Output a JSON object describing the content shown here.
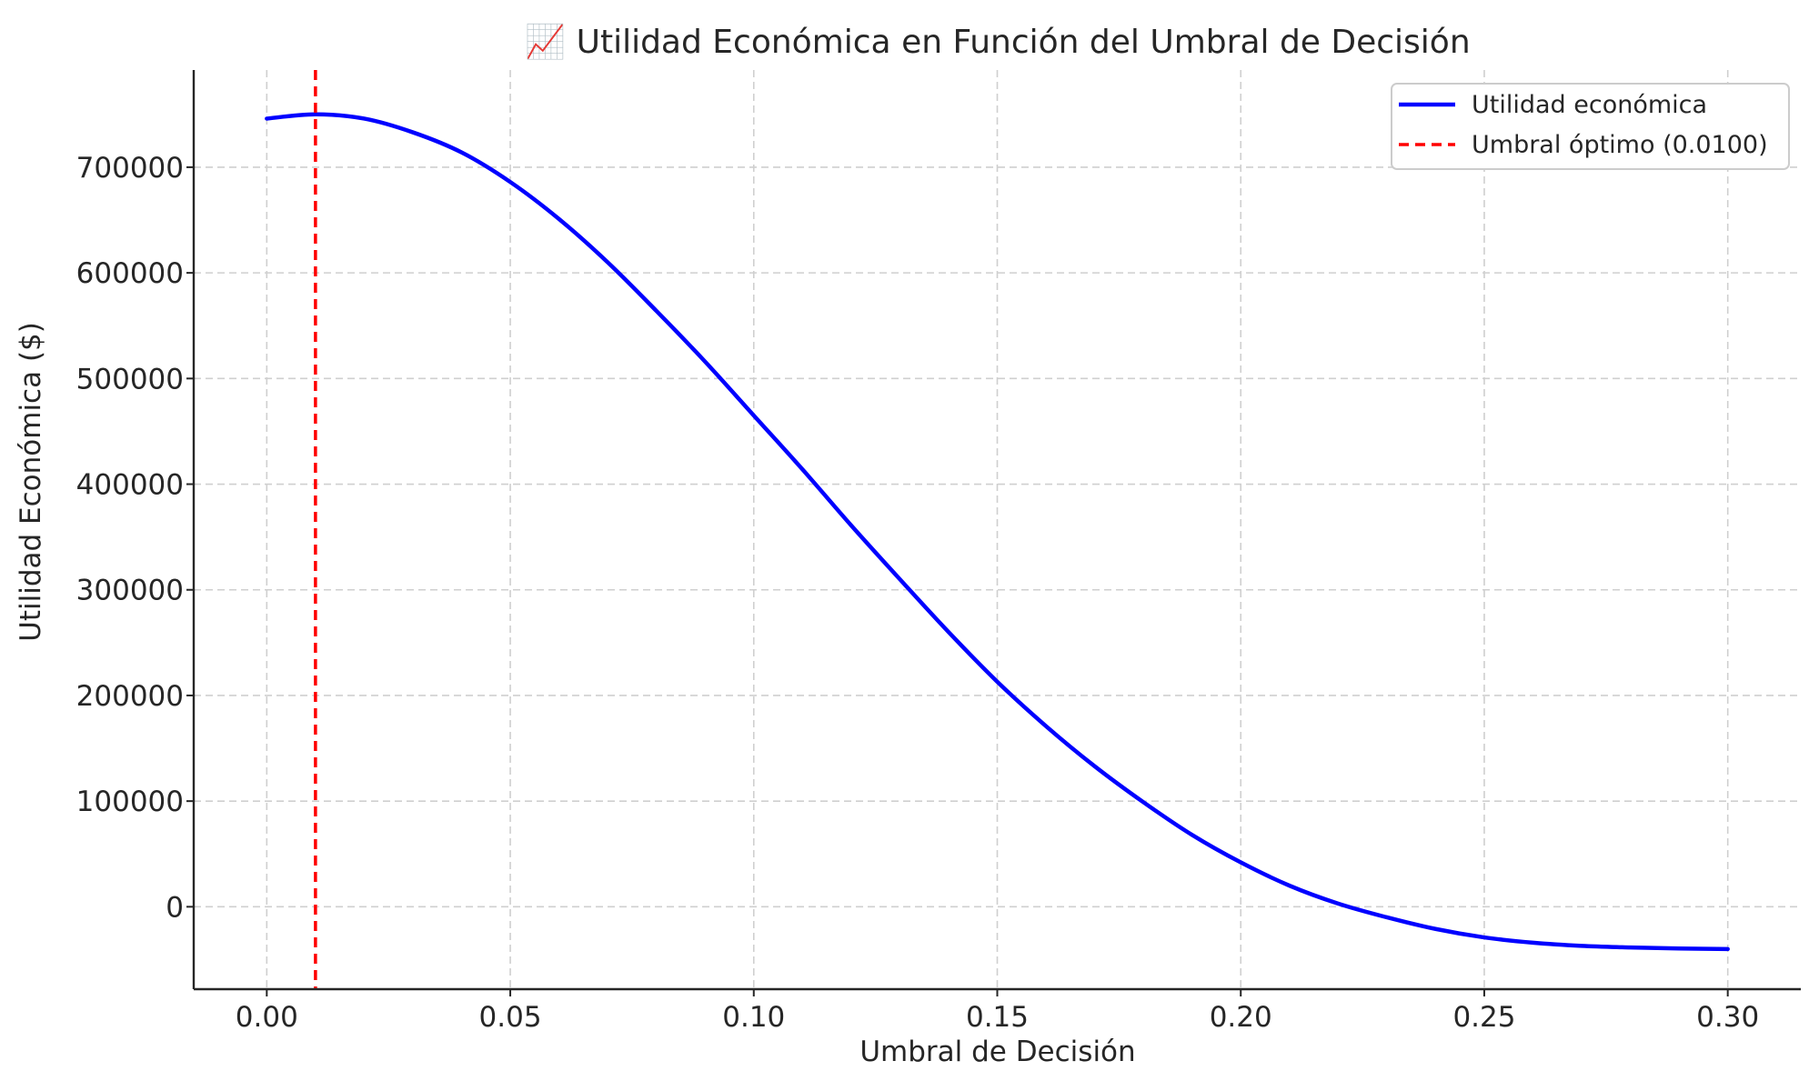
{
  "chart_data": {
    "type": "line",
    "title": "📈 Utilidad Económica en Función del Umbral de Decisión",
    "xlabel": "Umbral de Decisión",
    "ylabel": "Utilidad Económica ($)",
    "xlim": [
      -0.015,
      0.315
    ],
    "ylim": [
      -78000,
      792000
    ],
    "x_ticks": [
      0.0,
      0.05,
      0.1,
      0.15,
      0.2,
      0.25,
      0.3
    ],
    "x_tick_labels": [
      "0.00",
      "0.05",
      "0.10",
      "0.15",
      "0.20",
      "0.25",
      "0.30"
    ],
    "y_ticks": [
      0,
      100000,
      200000,
      300000,
      400000,
      500000,
      600000,
      700000
    ],
    "y_tick_labels": [
      "0",
      "100000",
      "200000",
      "300000",
      "400000",
      "500000",
      "600000",
      "700000"
    ],
    "grid": true,
    "legend_position": "top-right",
    "series": [
      {
        "name": "Utilidad económica",
        "color": "#0000ff",
        "style": "solid",
        "x": [
          0.0,
          0.01,
          0.02,
          0.03,
          0.04,
          0.05,
          0.06,
          0.07,
          0.08,
          0.09,
          0.1,
          0.11,
          0.12,
          0.13,
          0.14,
          0.15,
          0.16,
          0.17,
          0.18,
          0.19,
          0.2,
          0.21,
          0.22,
          0.23,
          0.24,
          0.25,
          0.26,
          0.27,
          0.28,
          0.29,
          0.3
        ],
        "y": [
          746000,
          750000,
          746000,
          733000,
          714000,
          686000,
          651000,
          610000,
          564000,
          516000,
          465000,
          414000,
          361000,
          310000,
          260000,
          213000,
          171000,
          133000,
          99000,
          68000,
          42000,
          20000,
          3000,
          -10000,
          -21000,
          -29000,
          -34000,
          -37000,
          -38500,
          -39500,
          -40000
        ]
      },
      {
        "name": "Umbral óptimo (0.0100)",
        "color": "#ff0000",
        "style": "dashed",
        "vertical_x": 0.01
      }
    ]
  }
}
